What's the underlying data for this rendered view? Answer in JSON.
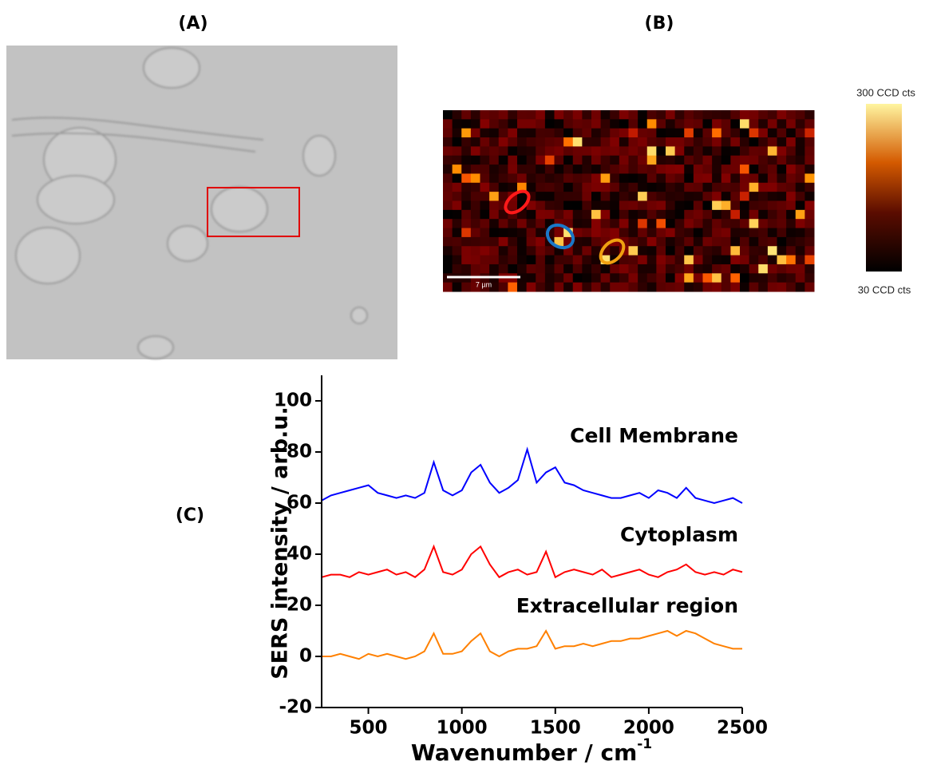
{
  "panels": {
    "a": {
      "label": "(A)"
    },
    "b": {
      "label": "(B)",
      "colorbar_max": "300 CCD cts",
      "colorbar_min": "30 CCD cts",
      "scale_bar": "7 µm"
    },
    "c": {
      "label": "(C)"
    }
  },
  "chart_data": {
    "type": "line",
    "y_label": "SERS intensity / arb.u.",
    "x_label": {
      "text": "Wavenumber / cm",
      "superscript": "-1"
    },
    "x": [
      250,
      300,
      350,
      400,
      450,
      500,
      550,
      600,
      650,
      700,
      750,
      800,
      850,
      900,
      950,
      1000,
      1050,
      1100,
      1150,
      1200,
      1250,
      1300,
      1350,
      1400,
      1450,
      1500,
      1550,
      1600,
      1650,
      1700,
      1750,
      1800,
      1850,
      1900,
      1950,
      2000,
      2050,
      2100,
      2150,
      2200,
      2250,
      2300,
      2350,
      2400,
      2450,
      2500
    ],
    "series": [
      {
        "name": "Cell Membrane",
        "color": "#0000ff",
        "values": [
          61,
          63,
          64,
          65,
          66,
          67,
          64,
          63,
          62,
          63,
          62,
          64,
          76,
          65,
          63,
          65,
          72,
          75,
          68,
          64,
          66,
          69,
          81,
          68,
          72,
          74,
          68,
          67,
          65,
          64,
          63,
          62,
          62,
          63,
          64,
          62,
          65,
          64,
          62,
          66,
          62,
          61,
          60,
          61,
          62,
          60
        ]
      },
      {
        "name": "Cytoplasm",
        "color": "#ff0000",
        "values": [
          31,
          32,
          32,
          31,
          33,
          32,
          33,
          34,
          32,
          33,
          31,
          34,
          43,
          33,
          32,
          34,
          40,
          43,
          36,
          31,
          33,
          34,
          32,
          33,
          41,
          31,
          33,
          34,
          33,
          32,
          34,
          31,
          32,
          33,
          34,
          32,
          31,
          33,
          34,
          36,
          33,
          32,
          33,
          32,
          34,
          33
        ]
      },
      {
        "name": "Extracellular region",
        "color": "#ff8000",
        "values": [
          0,
          0,
          1,
          0,
          -1,
          1,
          0,
          1,
          0,
          -1,
          0,
          2,
          9,
          1,
          1,
          2,
          6,
          9,
          2,
          0,
          2,
          3,
          3,
          4,
          10,
          3,
          4,
          4,
          5,
          4,
          5,
          6,
          6,
          7,
          7,
          8,
          9,
          10,
          8,
          10,
          9,
          7,
          5,
          4,
          3,
          3
        ]
      }
    ],
    "xlim": [
      250,
      2500
    ],
    "xticks": [
      500,
      1000,
      1500,
      2000,
      2500
    ],
    "ylim": [
      -20,
      110
    ],
    "yticks": [
      -20,
      0,
      20,
      40,
      60,
      80,
      100
    ]
  }
}
